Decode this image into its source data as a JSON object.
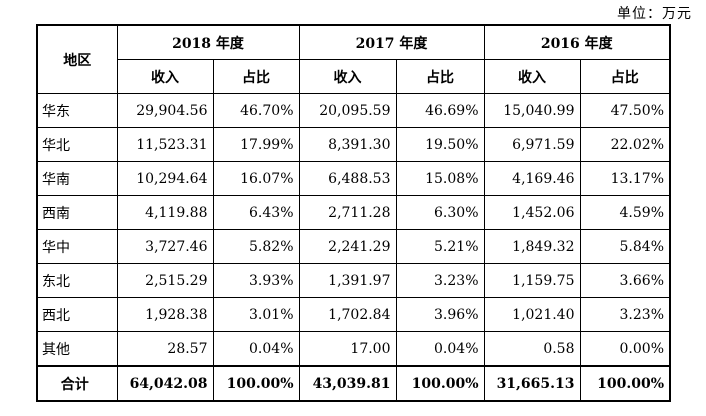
{
  "unit_label": "单位：万元",
  "header": {
    "region": "地区",
    "years": [
      "2018 年度",
      "2017 年度",
      "2016 年度"
    ],
    "sub": [
      "收入",
      "占比"
    ]
  },
  "rows": [
    {
      "region": "华东",
      "v": [
        "29,904.56",
        "46.70%",
        "20,095.59",
        "46.69%",
        "15,040.99",
        "47.50%"
      ]
    },
    {
      "region": "华北",
      "v": [
        "11,523.31",
        "17.99%",
        "8,391.30",
        "19.50%",
        "6,971.59",
        "22.02%"
      ]
    },
    {
      "region": "华南",
      "v": [
        "10,294.64",
        "16.07%",
        "6,488.53",
        "15.08%",
        "4,169.46",
        "13.17%"
      ]
    },
    {
      "region": "西南",
      "v": [
        "4,119.88",
        "6.43%",
        "2,711.28",
        "6.30%",
        "1,452.06",
        "4.59%"
      ]
    },
    {
      "region": "华中",
      "v": [
        "3,727.46",
        "5.82%",
        "2,241.29",
        "5.21%",
        "1,849.32",
        "5.84%"
      ]
    },
    {
      "region": "东北",
      "v": [
        "2,515.29",
        "3.93%",
        "1,391.97",
        "3.23%",
        "1,159.75",
        "3.66%"
      ]
    },
    {
      "region": "西北",
      "v": [
        "1,928.38",
        "3.01%",
        "1,702.84",
        "3.96%",
        "1,021.40",
        "3.23%"
      ]
    },
    {
      "region": "其他",
      "v": [
        "28.57",
        "0.04%",
        "17.00",
        "0.04%",
        "0.58",
        "0.00%"
      ]
    }
  ],
  "total": {
    "region": "合计",
    "v": [
      "64,042.08",
      "100.00%",
      "43,039.81",
      "100.00%",
      "31,665.13",
      "100.00%"
    ]
  }
}
